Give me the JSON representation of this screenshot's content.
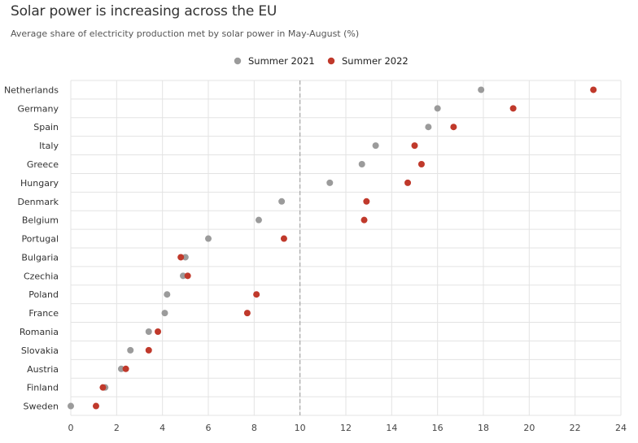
{
  "colors": {
    "summer_2021": "#9b9b9b",
    "summer_2022": "#c0392b",
    "grid": "#e3e3e3",
    "reference_line": "#999999"
  },
  "chart_data": {
    "type": "scatter",
    "title": "Solar power is increasing across the EU",
    "subtitle": "Average share of electricity production met by solar power in May-August (%)",
    "xlabel": "",
    "ylabel": "",
    "xlim": [
      0,
      24
    ],
    "xticks": [
      0,
      2,
      4,
      6,
      8,
      10,
      12,
      14,
      16,
      18,
      20,
      22,
      24
    ],
    "reference_line_x": 10,
    "legend_position": "top-center",
    "categories": [
      "Netherlands",
      "Germany",
      "Spain",
      "Italy",
      "Greece",
      "Hungary",
      "Denmark",
      "Belgium",
      "Portugal",
      "Bulgaria",
      "Czechia",
      "Poland",
      "France",
      "Romania",
      "Slovakia",
      "Austria",
      "Finland",
      "Sweden"
    ],
    "series": [
      {
        "name": "Summer 2021",
        "color": "#9b9b9b",
        "values": [
          17.9,
          16.0,
          15.6,
          13.3,
          12.7,
          11.3,
          9.2,
          8.2,
          6.0,
          5.0,
          4.9,
          4.2,
          4.1,
          3.4,
          2.6,
          2.2,
          1.5,
          0.0
        ]
      },
      {
        "name": "Summer 2022",
        "color": "#c0392b",
        "values": [
          22.8,
          19.3,
          16.7,
          15.0,
          15.3,
          14.7,
          12.9,
          12.8,
          9.3,
          4.8,
          5.1,
          8.1,
          7.7,
          3.8,
          3.4,
          2.4,
          1.4,
          1.1
        ]
      }
    ]
  }
}
